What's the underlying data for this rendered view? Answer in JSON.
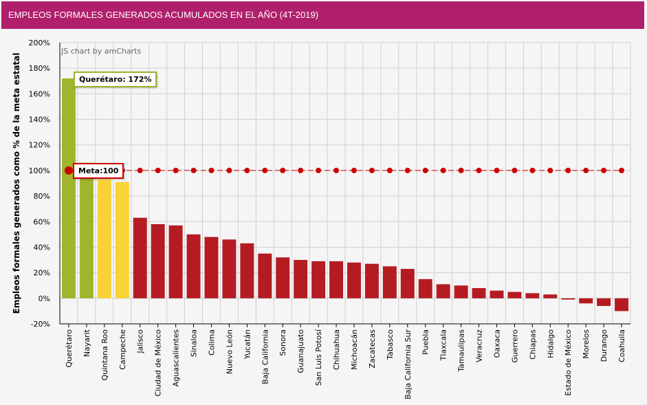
{
  "header": {
    "title": "EMPLEOS FORMALES GENERADOS ACUMULADOS EN EL AÑO (4T-2019)"
  },
  "credit": "JS chart by amCharts",
  "tooltips": {
    "top": "Querétaro: 172%",
    "meta": "Meta:100"
  },
  "chart_data": {
    "type": "bar",
    "title": "EMPLEOS FORMALES GENERADOS ACUMULADOS EN EL AÑO (4T-2019)",
    "ylabel": "Empleos formales generados como % de la meta estatal",
    "xlabel": "",
    "ylim": [
      -20,
      200
    ],
    "yticks": [
      -20,
      0,
      20,
      40,
      60,
      80,
      100,
      120,
      140,
      160,
      180,
      200
    ],
    "grid": true,
    "categories": [
      "Querétaro",
      "Nayarit",
      "Quintana Roo",
      "Campeche",
      "Jalisco",
      "Ciudad de México",
      "Aguascalientes",
      "Sinaloa",
      "Colima",
      "Nuevo León",
      "Yucatán",
      "Baja California",
      "Sonora",
      "Guanajuato",
      "San Luis Potosí",
      "Chihuahua",
      "Michoacán",
      "Zacatecas",
      "Tabasco",
      "Baja California Sur",
      "Puebla",
      "Tlaxcala",
      "Tamaulipas",
      "Veracruz",
      "Oaxaca",
      "Guerrero",
      "Chiapas",
      "Hidalgo",
      "Estado de México",
      "Morelos",
      "Durango",
      "Coahuila"
    ],
    "values": [
      172,
      106,
      93,
      91,
      63,
      58,
      57,
      50,
      48,
      46,
      43,
      35,
      32,
      30,
      29,
      29,
      28,
      27,
      25,
      23,
      15,
      11,
      10,
      8,
      6,
      5,
      4,
      3,
      -1,
      -4,
      -6,
      -10
    ],
    "series": [
      {
        "name": "Meta",
        "type": "line",
        "value": 100,
        "color": "#cc0000"
      }
    ],
    "colors": {
      "above": "#a0b42c",
      "near": "#f9d235",
      "below": "#b41c22"
    }
  }
}
